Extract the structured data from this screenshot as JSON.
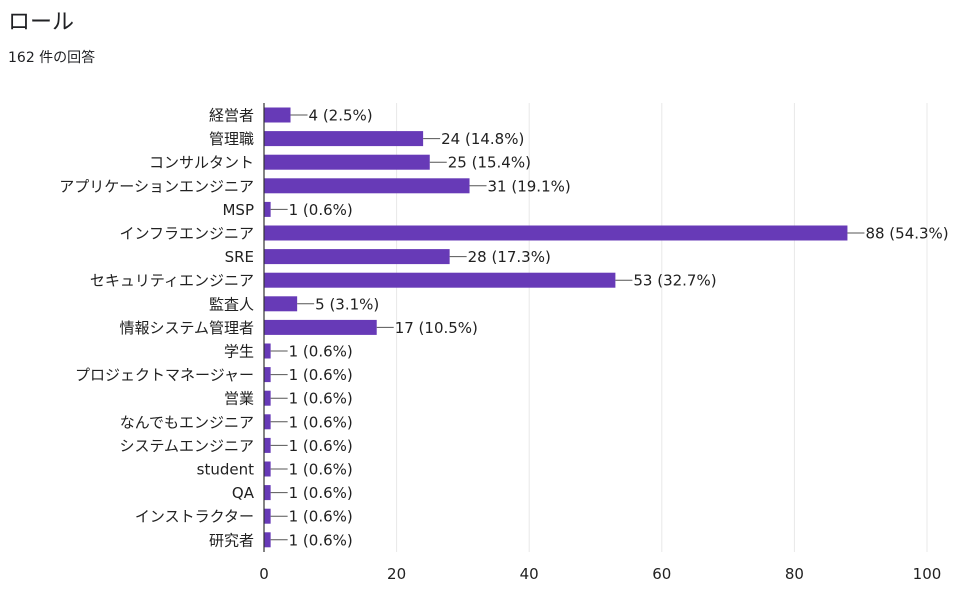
{
  "header": {
    "title": "ロール",
    "response_count": "162 件の回答"
  },
  "chart_data": {
    "type": "bar",
    "orientation": "horizontal",
    "title": "ロール",
    "subtitle": "162 件の回答",
    "categories": [
      "経営者",
      "管理職",
      "コンサルタント",
      "アプリケーションエンジニア",
      "MSP",
      "インフラエンジニア",
      "SRE",
      "セキュリティエンジニア",
      "監査人",
      "情報システム管理者",
      "学生",
      "プロジェクトマネージャー",
      "営業",
      "なんでもエンジニア",
      "システムエンジニア",
      "student",
      "QA",
      "インストラクター",
      "研究者"
    ],
    "values": [
      4,
      24,
      25,
      31,
      1,
      88,
      28,
      53,
      5,
      17,
      1,
      1,
      1,
      1,
      1,
      1,
      1,
      1,
      1
    ],
    "value_labels": [
      "4 (2.5%)",
      "24 (14.8%)",
      "25 (15.4%)",
      "31 (19.1%)",
      "1 (0.6%)",
      "88 (54.3%)",
      "28 (17.3%)",
      "53 (32.7%)",
      "5 (3.1%)",
      "17 (10.5%)",
      "1 (0.6%)",
      "1 (0.6%)",
      "1 (0.6%)",
      "1 (0.6%)",
      "1 (0.6%)",
      "1 (0.6%)",
      "1 (0.6%)",
      "1 (0.6%)",
      "1 (0.6%)"
    ],
    "xlim": [
      0,
      100
    ],
    "xticks": [
      0,
      20,
      40,
      60,
      80,
      100
    ],
    "xtick_labels": [
      "0",
      "20",
      "40",
      "60",
      "80",
      "100"
    ],
    "grid": true,
    "bar_color": "#673ab7",
    "grid_color": "#e8e8e8",
    "axis_color": "#333333"
  }
}
